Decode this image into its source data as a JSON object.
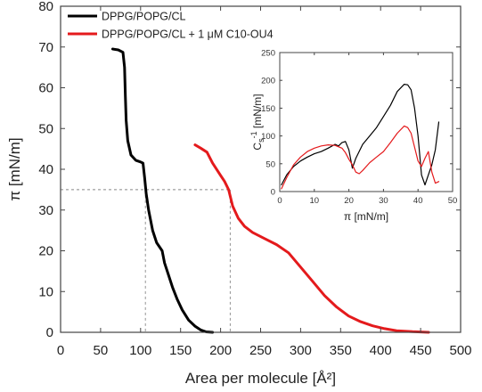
{
  "chart_data": [
    {
      "type": "line",
      "title": "",
      "xlabel": "Area per molecule [Å²]",
      "ylabel": "π [mN/m]",
      "xlim": [
        0,
        500
      ],
      "ylim": [
        0,
        80
      ],
      "x_ticks": [
        "0",
        "50",
        "100",
        "150",
        "200",
        "250",
        "300",
        "350",
        "400",
        "450",
        "500"
      ],
      "y_ticks": [
        "0",
        "10",
        "20",
        "30",
        "40",
        "50",
        "60",
        "70",
        "80"
      ],
      "legend_position": "top-left",
      "guide_lines": {
        "pressure": 35,
        "areas": [
          106,
          212
        ]
      },
      "series": [
        {
          "name": "DPPG/POPG/CL",
          "color": "#000000",
          "points": [
            [
              65,
              69.5
            ],
            [
              72,
              69.3
            ],
            [
              78,
              68.7
            ],
            [
              80,
              65
            ],
            [
              81,
              58
            ],
            [
              82,
              52
            ],
            [
              84,
              47
            ],
            [
              88,
              43.5
            ],
            [
              94,
              42.2
            ],
            [
              100,
              41.8
            ],
            [
              103,
              41.5
            ],
            [
              105,
              38
            ],
            [
              107,
              34
            ],
            [
              110,
              30
            ],
            [
              115,
              25
            ],
            [
              120,
              22
            ],
            [
              127,
              20
            ],
            [
              130,
              17
            ],
            [
              135,
              14
            ],
            [
              140,
              11
            ],
            [
              146,
              8
            ],
            [
              152,
              5.5
            ],
            [
              160,
              3
            ],
            [
              168,
              1.5
            ],
            [
              175,
              0.6
            ],
            [
              182,
              0.1
            ],
            [
              190,
              0
            ]
          ]
        },
        {
          "name": "DPPG/POPG/CL + 1 μM C10-OU4",
          "color": "#e41a1c",
          "points": [
            [
              168,
              46
            ],
            [
              175,
              45.2
            ],
            [
              183,
              44.2
            ],
            [
              190,
              41.5
            ],
            [
              200,
              38.5
            ],
            [
              205,
              37
            ],
            [
              210,
              35
            ],
            [
              215,
              31
            ],
            [
              222,
              28
            ],
            [
              230,
              26
            ],
            [
              240,
              24.5
            ],
            [
              255,
              23
            ],
            [
              270,
              21.5
            ],
            [
              285,
              19.5
            ],
            [
              300,
              16
            ],
            [
              315,
              12.5
            ],
            [
              330,
              9
            ],
            [
              345,
              6.2
            ],
            [
              360,
              4
            ],
            [
              375,
              2.6
            ],
            [
              390,
              1.6
            ],
            [
              405,
              0.9
            ],
            [
              420,
              0.4
            ],
            [
              440,
              0.15
            ],
            [
              460,
              0
            ]
          ]
        }
      ]
    },
    {
      "type": "line",
      "title": "",
      "xlabel": "π [mN/m]",
      "ylabel": "Cs⁻¹ [mN/m]",
      "ylabel_parts": {
        "main": "C",
        "sub": "s",
        "sup": "-1",
        "unit": " [mN/m]"
      },
      "xlim": [
        0,
        50
      ],
      "ylim": [
        0,
        250
      ],
      "x_ticks": [
        "0",
        "10",
        "20",
        "30",
        "40",
        "50"
      ],
      "y_ticks": [
        "0",
        "50",
        "100",
        "150",
        "200",
        "250"
      ],
      "series": [
        {
          "name": "DPPG/POPG/CL",
          "color": "#000000",
          "points": [
            [
              0.5,
              12
            ],
            [
              2,
              30
            ],
            [
              4,
              45
            ],
            [
              6,
              55
            ],
            [
              8,
              62
            ],
            [
              10,
              68
            ],
            [
              12,
              72
            ],
            [
              14,
              78
            ],
            [
              16,
              85
            ],
            [
              17,
              82
            ],
            [
              18,
              88
            ],
            [
              19,
              90
            ],
            [
              20,
              75
            ],
            [
              21,
              42
            ],
            [
              22,
              60
            ],
            [
              24,
              85
            ],
            [
              26,
              100
            ],
            [
              28,
              115
            ],
            [
              30,
              135
            ],
            [
              32,
              155
            ],
            [
              34,
              180
            ],
            [
              36,
              193
            ],
            [
              37,
              192
            ],
            [
              38,
              183
            ],
            [
              39,
              150
            ],
            [
              40,
              100
            ],
            [
              41,
              30
            ],
            [
              42,
              12
            ],
            [
              43,
              30
            ],
            [
              44,
              48
            ],
            [
              45,
              75
            ],
            [
              46,
              125
            ]
          ]
        },
        {
          "name": "DPPG/POPG/CL + 1 μM C10-OU4",
          "color": "#e41a1c",
          "points": [
            [
              0.5,
              5
            ],
            [
              2,
              25
            ],
            [
              4,
              48
            ],
            [
              6,
              62
            ],
            [
              8,
              72
            ],
            [
              10,
              78
            ],
            [
              12,
              82
            ],
            [
              14,
              84
            ],
            [
              16,
              83
            ],
            [
              18,
              78
            ],
            [
              19,
              70
            ],
            [
              20,
              58
            ],
            [
              21,
              48
            ],
            [
              22,
              35
            ],
            [
              23,
              32
            ],
            [
              24,
              38
            ],
            [
              26,
              52
            ],
            [
              28,
              62
            ],
            [
              30,
              72
            ],
            [
              32,
              88
            ],
            [
              34,
              105
            ],
            [
              36,
              118
            ],
            [
              37,
              115
            ],
            [
              38,
              105
            ],
            [
              39,
              80
            ],
            [
              40,
              55
            ],
            [
              41,
              45
            ],
            [
              42,
              60
            ],
            [
              43,
              72
            ],
            [
              44,
              35
            ],
            [
              45,
              15
            ],
            [
              46,
              18
            ]
          ]
        }
      ]
    }
  ]
}
